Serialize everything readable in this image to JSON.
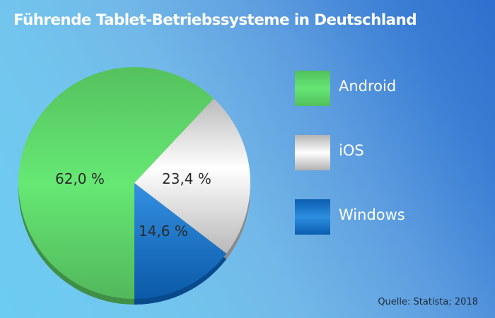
{
  "title": "Führende Tablet-Betriebssysteme in Deutschland",
  "source": "Quelle: Statista; 2018",
  "legend": [
    {
      "label": "Android",
      "color": "#5cd86a"
    },
    {
      "label": "iOS",
      "color": "#e6e6e6"
    },
    {
      "label": "Windows",
      "color": "#1a74cc"
    }
  ],
  "slice_labels": [
    "62,0 %",
    "23,4 %",
    "14,6 %"
  ],
  "chart_data": {
    "type": "pie",
    "title": "Führende Tablet-Betriebssysteme in Deutschland",
    "categories": [
      "Android",
      "iOS",
      "Windows"
    ],
    "values": [
      62.0,
      23.4,
      14.6
    ],
    "unit": "%",
    "data_labels": [
      "62,0 %",
      "23,4 %",
      "14,6 %"
    ],
    "colors": [
      "#5cd86a",
      "#e6e6e6",
      "#1a74cc"
    ],
    "legend_position": "right",
    "source": "Quelle: Statista; 2018"
  }
}
